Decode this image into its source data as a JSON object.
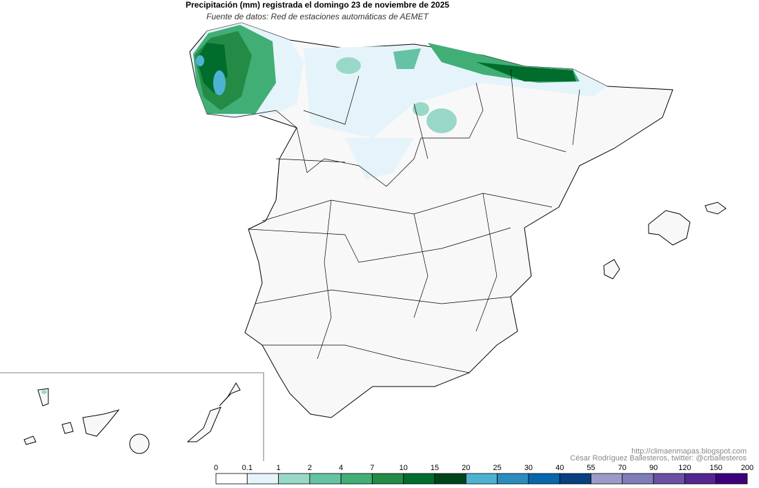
{
  "title": "Precipitación (mm) registrada el domingo 23 de noviembre de 2025",
  "subtitle": "Fuente de datos: Red de estaciones automáticas de AEMET",
  "credits": [
    "http://climaenmapas.blogspot.com",
    "César Rodríguez Ballesteros, twitter: @crballesteros"
  ],
  "legend": {
    "ticks": [
      0,
      0.1,
      1,
      2,
      4,
      7,
      10,
      15,
      20,
      25,
      30,
      40,
      55,
      70,
      90,
      120,
      150,
      200
    ],
    "colors": [
      "#ffffff",
      "#e5f4fa",
      "#99d8c9",
      "#66c2a4",
      "#41ae76",
      "#238b45",
      "#006d2c",
      "#00441b",
      "#4eb3d3",
      "#2b8cbe",
      "#0868ac",
      "#084081",
      "#9e9ac8",
      "#807dba",
      "#6a51a3",
      "#54278f",
      "#3f007d"
    ]
  }
}
